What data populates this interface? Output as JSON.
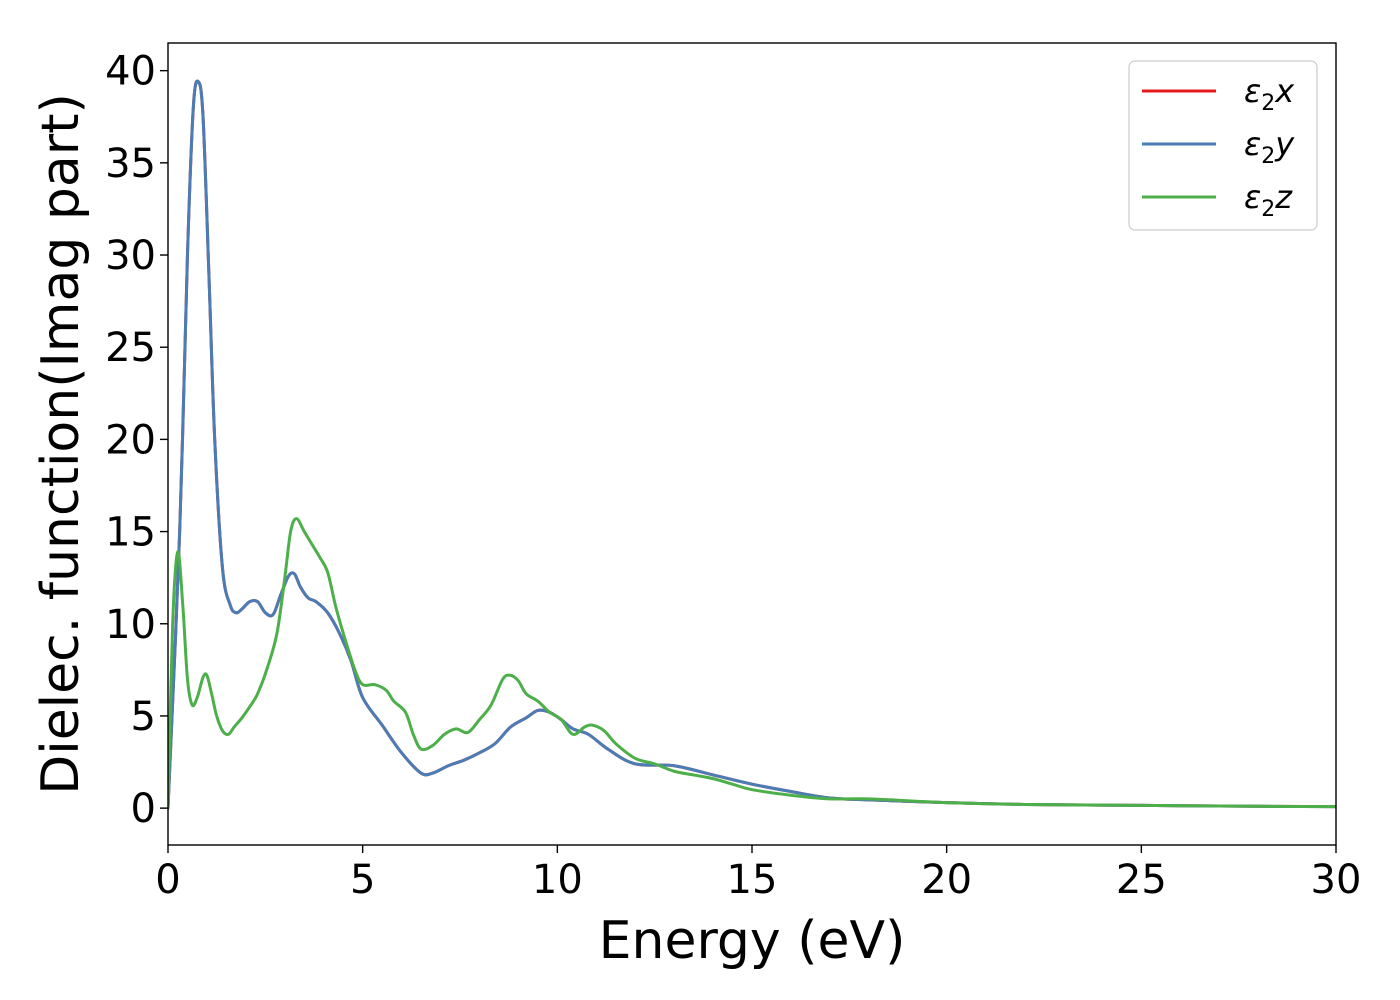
{
  "chart_data": {
    "type": "line",
    "title": "",
    "xlabel": "Energy (eV)",
    "ylabel": "Dielec. function(Imag part)",
    "xlim": [
      0,
      30
    ],
    "ylim": [
      -2,
      41.5
    ],
    "xticks": [
      0,
      5,
      10,
      15,
      20,
      25,
      30
    ],
    "yticks": [
      0,
      5,
      10,
      15,
      20,
      25,
      30,
      35,
      40
    ],
    "grid": false,
    "legend_position": "top-right",
    "series": [
      {
        "name": "ε2x",
        "legend_base": "ε",
        "legend_sub": "2",
        "legend_suffix": "x",
        "color": "#e41a1c",
        "x": [
          0,
          0.3,
          0.5,
          0.65,
          0.78,
          0.9,
          1.05,
          1.2,
          1.4,
          1.6,
          1.75,
          1.9,
          2.1,
          2.3,
          2.5,
          2.7,
          2.9,
          3.1,
          3.25,
          3.4,
          3.6,
          3.8,
          4.1,
          4.4,
          4.7,
          5.0,
          5.5,
          6.0,
          6.5,
          6.8,
          7.2,
          7.6,
          8.0,
          8.4,
          8.8,
          9.2,
          9.5,
          9.8,
          10.1,
          10.4,
          10.8,
          11.3,
          12.0,
          13.0,
          14.0,
          15.0,
          16.0,
          17.0,
          18.0,
          20.0,
          22.0,
          25.0,
          28.0,
          30.0
        ],
        "y": [
          0,
          15,
          30,
          38,
          39.4,
          37.5,
          29,
          20,
          13,
          11,
          10.6,
          10.8,
          11.2,
          11.2,
          10.6,
          10.5,
          11.6,
          12.6,
          12.7,
          12.0,
          11.4,
          11.2,
          10.6,
          9.5,
          8.0,
          6.0,
          4.5,
          3.0,
          1.9,
          1.9,
          2.3,
          2.6,
          3.0,
          3.5,
          4.4,
          4.9,
          5.3,
          5.2,
          4.8,
          4.3,
          4.0,
          3.2,
          2.4,
          2.3,
          1.8,
          1.3,
          0.9,
          0.55,
          0.45,
          0.3,
          0.2,
          0.15,
          0.1,
          0.08
        ]
      },
      {
        "name": "ε2y",
        "legend_base": "ε",
        "legend_sub": "2",
        "legend_suffix": "y",
        "color": "#4a7db5",
        "x": [
          0,
          0.3,
          0.5,
          0.65,
          0.78,
          0.9,
          1.05,
          1.2,
          1.4,
          1.6,
          1.75,
          1.9,
          2.1,
          2.3,
          2.5,
          2.7,
          2.9,
          3.1,
          3.25,
          3.4,
          3.6,
          3.8,
          4.1,
          4.4,
          4.7,
          5.0,
          5.5,
          6.0,
          6.5,
          6.8,
          7.2,
          7.6,
          8.0,
          8.4,
          8.8,
          9.2,
          9.5,
          9.8,
          10.1,
          10.4,
          10.8,
          11.3,
          12.0,
          13.0,
          14.0,
          15.0,
          16.0,
          17.0,
          18.0,
          20.0,
          22.0,
          25.0,
          28.0,
          30.0
        ],
        "y": [
          0,
          15,
          30,
          38,
          39.4,
          37.5,
          29,
          20,
          13,
          11,
          10.6,
          10.8,
          11.2,
          11.2,
          10.6,
          10.5,
          11.6,
          12.6,
          12.7,
          12.0,
          11.4,
          11.2,
          10.6,
          9.5,
          8.0,
          6.0,
          4.5,
          3.0,
          1.9,
          1.9,
          2.3,
          2.6,
          3.0,
          3.5,
          4.4,
          4.9,
          5.3,
          5.2,
          4.8,
          4.3,
          4.0,
          3.2,
          2.4,
          2.3,
          1.8,
          1.3,
          0.9,
          0.55,
          0.45,
          0.3,
          0.2,
          0.15,
          0.1,
          0.08
        ]
      },
      {
        "name": "ε2z",
        "legend_base": "ε",
        "legend_sub": "2",
        "legend_suffix": "z",
        "color": "#4daf4a",
        "x": [
          0,
          0.12,
          0.25,
          0.38,
          0.5,
          0.62,
          0.75,
          0.9,
          1.0,
          1.12,
          1.25,
          1.4,
          1.55,
          1.7,
          1.9,
          2.1,
          2.3,
          2.55,
          2.8,
          3.0,
          3.15,
          3.3,
          3.5,
          3.7,
          3.9,
          4.1,
          4.3,
          4.5,
          4.8,
          5.0,
          5.3,
          5.6,
          5.8,
          6.1,
          6.3,
          6.5,
          6.8,
          7.1,
          7.4,
          7.7,
          8.0,
          8.3,
          8.6,
          8.8,
          9.0,
          9.2,
          9.5,
          9.8,
          10.1,
          10.4,
          10.7,
          10.9,
          11.2,
          11.5,
          12.0,
          12.5,
          13.0,
          13.5,
          14.0,
          14.5,
          15.0,
          16.0,
          17.0,
          18.0,
          20.0,
          22.0,
          25.0,
          28.0,
          30.0
        ],
        "y": [
          0,
          10,
          13.9,
          11,
          7,
          5.6,
          6.0,
          7.1,
          7.2,
          6.2,
          5.0,
          4.2,
          4.0,
          4.4,
          4.9,
          5.5,
          6.2,
          7.6,
          9.5,
          12.5,
          15.0,
          15.7,
          15.0,
          14.3,
          13.6,
          12.8,
          11.0,
          9.5,
          7.5,
          6.7,
          6.7,
          6.4,
          5.8,
          5.2,
          4.0,
          3.2,
          3.4,
          4.0,
          4.3,
          4.1,
          4.8,
          5.6,
          7.0,
          7.2,
          6.9,
          6.2,
          5.8,
          5.2,
          4.8,
          4.0,
          4.4,
          4.5,
          4.2,
          3.5,
          2.7,
          2.4,
          2.0,
          1.8,
          1.6,
          1.3,
          1.0,
          0.7,
          0.5,
          0.5,
          0.3,
          0.2,
          0.15,
          0.1,
          0.08
        ]
      }
    ]
  }
}
